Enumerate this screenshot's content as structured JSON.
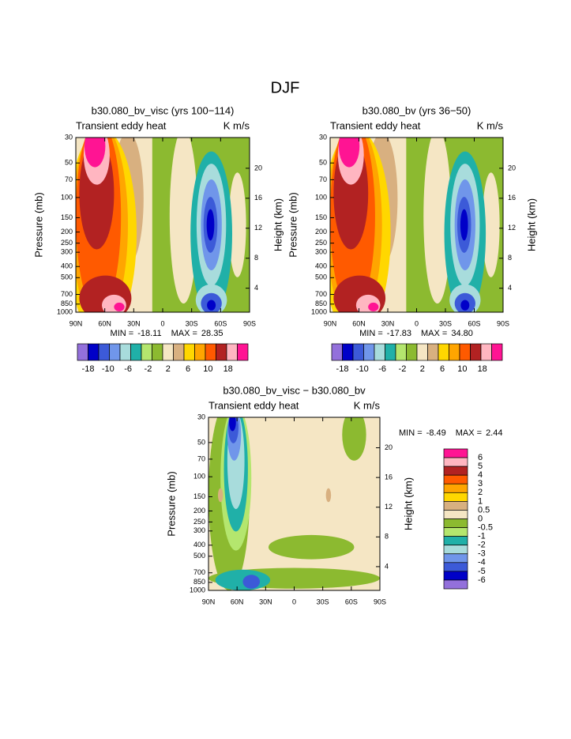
{
  "title": "DJF",
  "chart_data": [
    {
      "type": "contour",
      "title": "b30.080_bv_visc (yrs 100−114)",
      "subtitle_left": "Transient eddy heat",
      "subtitle_right": "K m/s",
      "ylabel": "Pressure (mb)",
      "y2label": "Height (km)",
      "min_label": "MIN =",
      "min": -18.11,
      "max_label": "MAX =",
      "max": 28.35,
      "xlim": [
        90,
        -90
      ],
      "xticks": [
        {
          "value": 90,
          "label": "90N"
        },
        {
          "value": 60,
          "label": "60N"
        },
        {
          "value": 30,
          "label": "30N"
        },
        0,
        {
          "value": -30,
          "label": "30S"
        },
        {
          "value": -60,
          "label": "60S"
        },
        {
          "value": -90,
          "label": "90S"
        }
      ],
      "ylim": [
        1000,
        30
      ],
      "log_y": true,
      "yticks": [
        30,
        50,
        70,
        100,
        150,
        200,
        250,
        300,
        400,
        500,
        700,
        850,
        1000
      ],
      "y2lim": [
        0.8,
        24.1
      ],
      "y2ticks": [
        4,
        8,
        12,
        16,
        20
      ],
      "colorbar": {
        "orientation": "horizontal",
        "colors": [
          "#9370db",
          "#0000c8",
          "#3c5ad8",
          "#7096ea",
          "#a8dcdc",
          "#20b0a8",
          "#b4e66e",
          "#8cba30",
          "#f5e6c4",
          "#d8b080",
          "#ffd700",
          "#ffa500",
          "#ff5a00",
          "#b22222",
          "#ffb6c1",
          "#ff1493"
        ],
        "labels": [
          -18,
          -10,
          -6,
          -2,
          2,
          6,
          10,
          18
        ]
      }
    },
    {
      "type": "contour",
      "title": "b30.080_bv (yrs 36−50)",
      "subtitle_left": "Transient eddy heat",
      "subtitle_right": "K m/s",
      "ylabel": "Pressure (mb)",
      "y2label": "Height (km)",
      "min_label": "MIN =",
      "min": -17.83,
      "max_label": "MAX =",
      "max": {
        "value": 34.8,
        "label": "34.80"
      },
      "xlim": [
        90,
        -90
      ],
      "xticks": [
        {
          "value": 90,
          "label": "90N"
        },
        {
          "value": 60,
          "label": "60N"
        },
        {
          "value": 30,
          "label": "30N"
        },
        0,
        {
          "value": -30,
          "label": "30S"
        },
        {
          "value": -60,
          "label": "60S"
        },
        {
          "value": -90,
          "label": "90S"
        }
      ],
      "ylim": [
        1000,
        30
      ],
      "log_y": true,
      "yticks": [
        30,
        50,
        70,
        100,
        150,
        200,
        250,
        300,
        400,
        500,
        700,
        850,
        1000
      ],
      "y2lim": [
        0.8,
        24.1
      ],
      "y2ticks": [
        4,
        8,
        12,
        16,
        20
      ],
      "colorbar": {
        "orientation": "horizontal",
        "colors": [
          "#9370db",
          "#0000c8",
          "#3c5ad8",
          "#7096ea",
          "#a8dcdc",
          "#20b0a8",
          "#b4e66e",
          "#8cba30",
          "#f5e6c4",
          "#d8b080",
          "#ffd700",
          "#ffa500",
          "#ff5a00",
          "#b22222",
          "#ffb6c1",
          "#ff1493"
        ],
        "labels": [
          -18,
          -10,
          -6,
          -2,
          2,
          6,
          10,
          18
        ]
      }
    },
    {
      "type": "contour",
      "title": "b30.080_bv_visc − b30.080_bv",
      "subtitle_left": "Transient eddy heat",
      "subtitle_right": "K m/s",
      "ylabel": "Pressure (mb)",
      "y2label": "Height (km)",
      "min_label": "MIN =",
      "min": -8.49,
      "max_label": "MAX =",
      "max": 2.44,
      "xlim": [
        90,
        -90
      ],
      "xticks": [
        {
          "value": 90,
          "label": "90N"
        },
        {
          "value": 60,
          "label": "60N"
        },
        {
          "value": 30,
          "label": "30N"
        },
        0,
        {
          "value": -30,
          "label": "30S"
        },
        {
          "value": -60,
          "label": "60S"
        },
        {
          "value": -90,
          "label": "90S"
        }
      ],
      "ylim": [
        1000,
        30
      ],
      "log_y": true,
      "yticks": [
        30,
        50,
        70,
        100,
        150,
        200,
        250,
        300,
        400,
        500,
        700,
        850,
        1000
      ],
      "y2lim": [
        0.8,
        24.1
      ],
      "y2ticks": [
        4,
        8,
        12,
        16,
        20
      ],
      "colorbar": {
        "orientation": "vertical",
        "colors": [
          "#ff1493",
          "#ffb6c1",
          "#b22222",
          "#ff5a00",
          "#ffa500",
          "#ffd700",
          "#d8b080",
          "#f5e6c4",
          "#8cba30",
          "#b4e66e",
          "#20b0a8",
          "#a8dcdc",
          "#7096ea",
          "#3c5ad8",
          "#0000c8",
          "#9370db"
        ],
        "labels": [
          6,
          5,
          4,
          3,
          2,
          1,
          0.5,
          0,
          -0.5,
          -1,
          -2,
          -3,
          -4,
          -5,
          -6
        ]
      }
    }
  ]
}
